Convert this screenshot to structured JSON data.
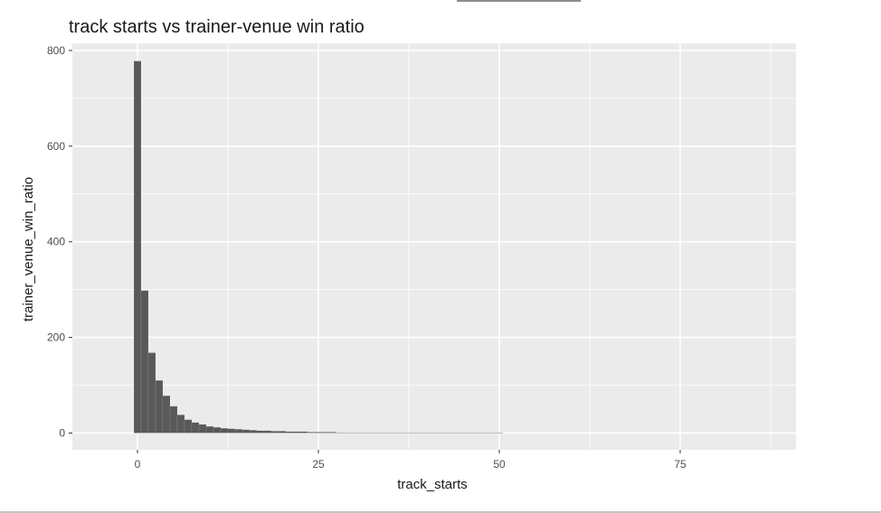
{
  "chart_data": {
    "type": "bar",
    "title": "track starts vs trainer-venue win ratio",
    "xlabel": "track_starts",
    "ylabel": "trainer_venue_win_ratio",
    "xlim": [
      -9,
      91
    ],
    "ylim": [
      -35,
      815
    ],
    "x_ticks": [
      0,
      25,
      50,
      75
    ],
    "y_ticks": [
      0,
      200,
      400,
      600,
      800
    ],
    "x_tick_labels": [
      "0",
      "25",
      "50",
      "75"
    ],
    "y_tick_labels": [
      "0",
      "200",
      "400",
      "600",
      "800"
    ],
    "grid": true,
    "bar_width": 1,
    "bar_fill": "#595959",
    "panel_background": "#ebebeb",
    "grid_color": "#ffffff",
    "x": [
      0,
      1,
      2,
      3,
      4,
      5,
      6,
      7,
      8,
      9,
      10,
      11,
      12,
      13,
      14,
      15,
      16,
      17,
      18,
      19,
      20,
      21,
      22,
      23,
      24,
      25,
      26,
      27,
      28,
      29,
      30,
      31,
      32,
      33,
      34,
      35,
      36,
      37,
      38,
      39,
      40,
      41,
      42,
      43,
      44,
      45,
      46,
      47,
      48,
      49,
      50
    ],
    "values": [
      778,
      298,
      168,
      110,
      78,
      56,
      38,
      28,
      22,
      18,
      14,
      12,
      10,
      9,
      8,
      7,
      6,
      5,
      5,
      4,
      4,
      3,
      3,
      3,
      2,
      2,
      2,
      2,
      1,
      1,
      1,
      1,
      1,
      1,
      1,
      1,
      1,
      1,
      1,
      1,
      1,
      1,
      1,
      1,
      1,
      1,
      1,
      1,
      1,
      1,
      1
    ]
  }
}
